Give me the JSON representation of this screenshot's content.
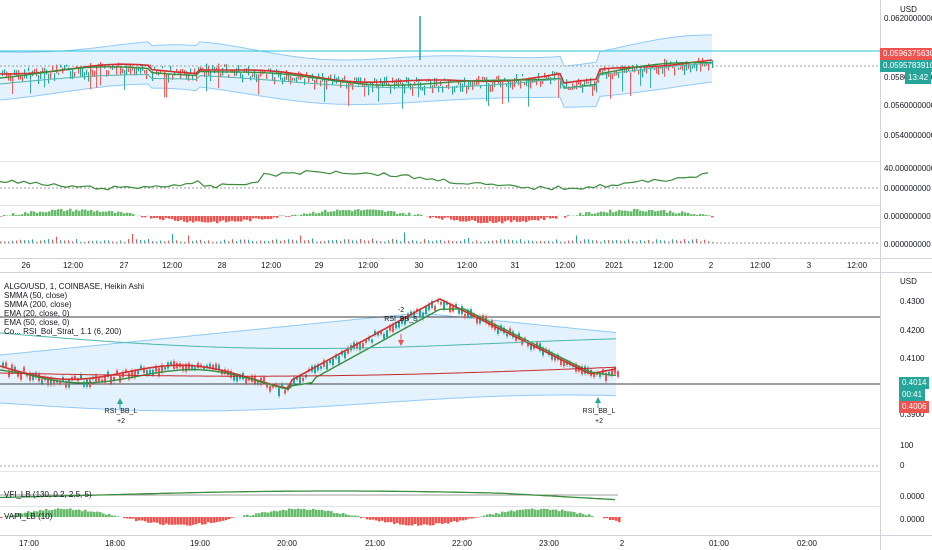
{
  "top_chart": {
    "currency_label": "USD",
    "price_axis": [
      "0.0620000000",
      "0.0580000000",
      "0.0560000000",
      "0.0540000000"
    ],
    "price_tags": [
      {
        "text": "0.0596375630",
        "color": "#ef5350"
      },
      {
        "text": "0.0595783910",
        "color": "#26a69a"
      },
      {
        "text": "13:42",
        "color": "#26a69a"
      }
    ],
    "rsi_axis": [
      "40.000000000",
      "0.000000000"
    ],
    "vapi_axis": [
      "0.000000000"
    ],
    "vol_axis": [
      "0.000000000"
    ],
    "time_axis": [
      "26",
      "12:00",
      "27",
      "12:00",
      "28",
      "12:00",
      "29",
      "12:00",
      "30",
      "12:00",
      "31",
      "12:00",
      "2021",
      "12:00",
      "2",
      "12:00",
      "3",
      "12:00"
    ]
  },
  "bottom_chart": {
    "currency_label": "USD",
    "legend": [
      "ALGO/USD, 1, COINBASE, Heikin Ashi",
      "SMMA (50, close)",
      "SMMA (200, close)",
      "EMA (20, close, 0)",
      "EMA (50, close, 0)",
      "Co... RSI_Bol_Strat_ 1.1 (6, 200)"
    ],
    "price_axis": [
      "0.4300",
      "0.4200",
      "0.4100",
      "0.3900"
    ],
    "price_tags": [
      {
        "text": "0.4014",
        "color": "#26a69a"
      },
      {
        "text": "00:41",
        "color": "#26a69a"
      },
      {
        "text": "0.4006",
        "color": "#ef5350"
      }
    ],
    "rsi_axis": [
      "100",
      "0"
    ],
    "signals": [
      {
        "label": "RSI_BB_L",
        "count": "+2",
        "type": "long"
      },
      {
        "label": "RSI_BB_S",
        "count": "-2",
        "type": "short"
      },
      {
        "label": "RSI_BB_L",
        "count": "+2",
        "type": "long"
      }
    ],
    "vfi_label": "VFI_LB (130, 0.2, 2.5, 5)",
    "vfi_axis": [
      "0.0000"
    ],
    "vapi_label": "VAPI_LB (10)",
    "vapi_axis": [
      "0.0000"
    ],
    "time_axis": [
      "17:00",
      "18:00",
      "19:00",
      "20:00",
      "21:00",
      "22:00",
      "23:00",
      "2",
      "01:00",
      "02:00"
    ]
  },
  "colors": {
    "up": "#26a69a",
    "down": "#ef5350",
    "smma50": "#2e7d32",
    "smma200": "#c62828",
    "ema20": "#d32f2f",
    "ema50": "#388e3c",
    "bband": "#bbdefb",
    "cyan_line": "#26c6da"
  }
}
